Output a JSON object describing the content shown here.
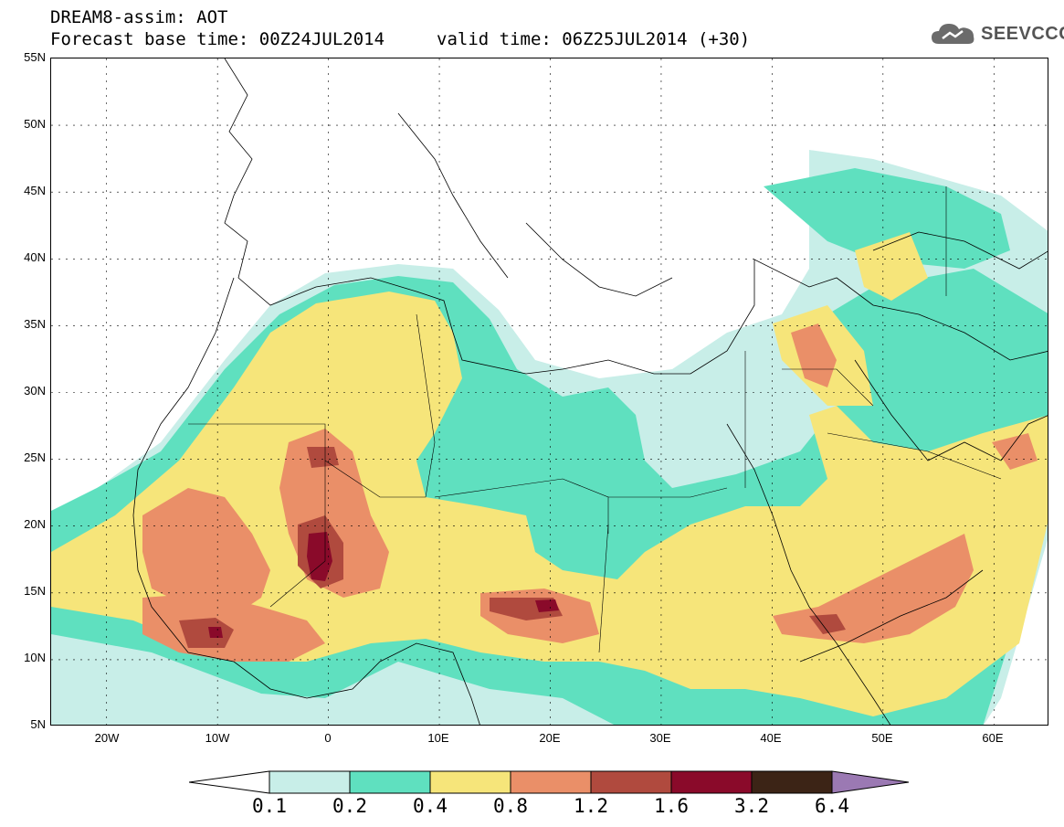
{
  "header": {
    "title": "DREAM8-assim: AOT",
    "base_time_line": "Forecast base time: 00Z24JUL2014",
    "valid_line": "valid time: 06Z25JUL2014 (+30)"
  },
  "logo": {
    "icon": "cloud-icon",
    "text": "SEEVCCC"
  },
  "map": {
    "lat_labels": [
      "55N",
      "50N",
      "45N",
      "40N",
      "35N",
      "30N",
      "25N",
      "20N",
      "15N",
      "10N",
      "5N"
    ],
    "lon_labels": [
      "20W",
      "10W",
      "0",
      "10E",
      "20E",
      "30E",
      "40E",
      "50E",
      "60E"
    ],
    "lon_range": [
      -25,
      65
    ],
    "lat_range": [
      5,
      55
    ]
  },
  "colorbar": {
    "levels": [
      "0.1",
      "0.2",
      "0.4",
      "0.8",
      "1.2",
      "1.6",
      "3.2",
      "6.4"
    ],
    "colors": [
      "#ffffff",
      "#c8eee8",
      "#5fe0bf",
      "#f6e57a",
      "#ea8f68",
      "#b04a3e",
      "#8a0a2a",
      "#3c2416",
      "#9b79b3"
    ]
  }
}
